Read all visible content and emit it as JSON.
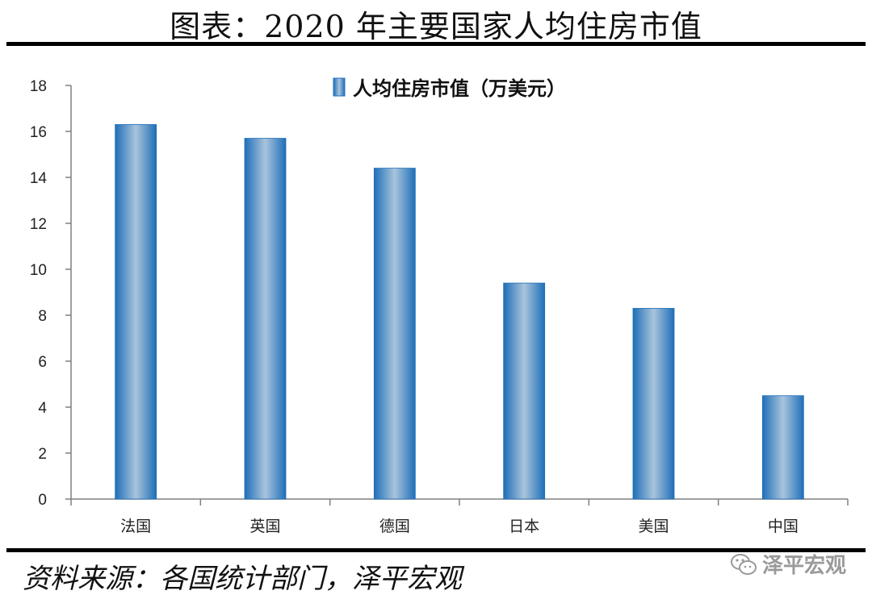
{
  "title": "图表：2020 年主要国家人均住房市值",
  "source": "资料来源：各国统计部门，泽平宏观",
  "watermark": "泽平宏观",
  "colors": {
    "bar_edge": "#1f6fb8",
    "bar_mid": "#a9c4dc",
    "axis": "#808080"
  },
  "chart_data": {
    "type": "bar",
    "categories": [
      "法国",
      "英国",
      "德国",
      "日本",
      "美国",
      "中国"
    ],
    "series": [
      {
        "name": "人均住房市值（万美元）",
        "values": [
          16.3,
          15.7,
          14.4,
          9.4,
          8.3,
          4.5
        ]
      }
    ],
    "ylim": [
      0,
      18
    ],
    "yticks": [
      0,
      2,
      4,
      6,
      8,
      10,
      12,
      14,
      16,
      18
    ],
    "legend_position": "top-center",
    "grid": false
  }
}
